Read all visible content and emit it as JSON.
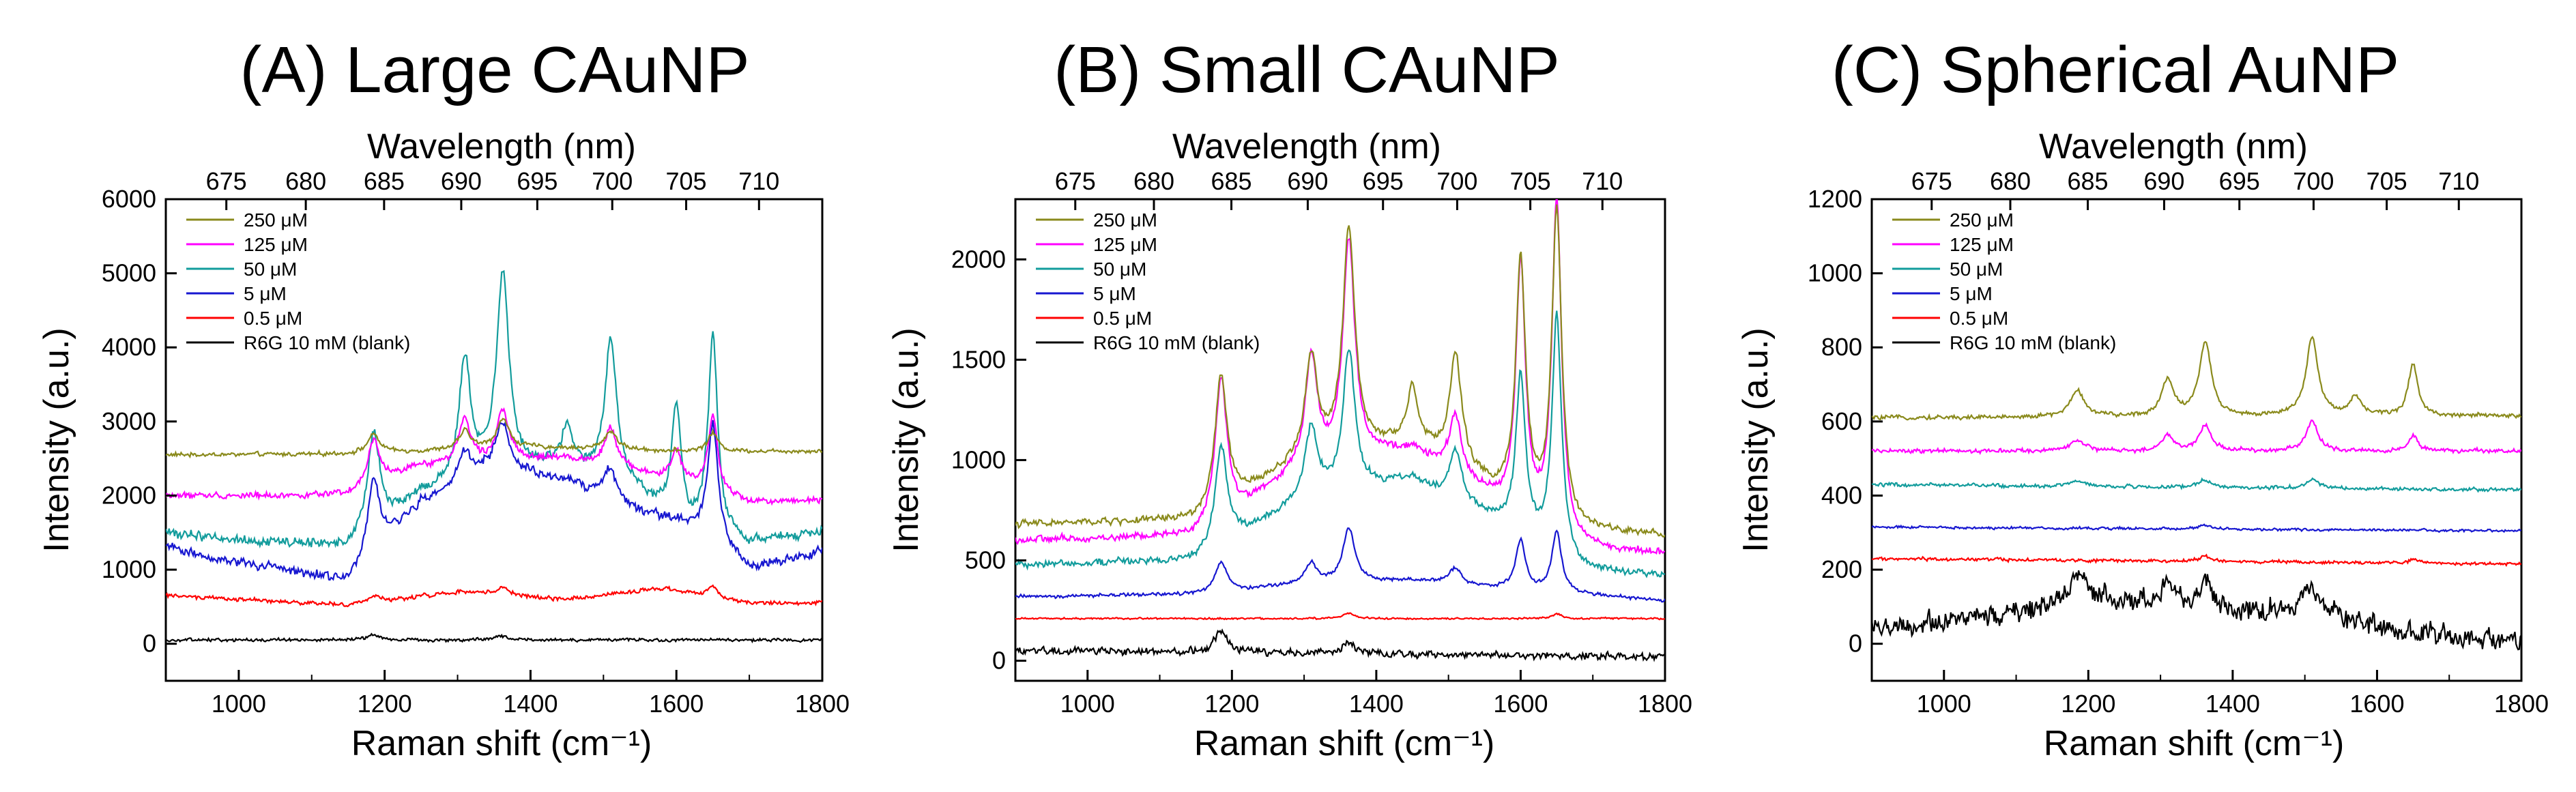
{
  "chart_data": [
    {
      "type": "line",
      "panel": "A",
      "title": "(A) Large CAuNP",
      "xlabel": "Raman shift (cm⁻¹)",
      "ylabel": "Intensity (a.u.)",
      "top_xlabel": "Wavelength (nm)",
      "xlim": [
        900,
        1800
      ],
      "ylim": [
        -500,
        6000
      ],
      "xticks": [
        1000,
        1200,
        1400,
        1600,
        1800
      ],
      "yticks": [
        0,
        1000,
        2000,
        3000,
        4000,
        5000,
        6000
      ],
      "top_ticks": [
        675,
        680,
        685,
        690,
        695,
        700,
        705,
        710
      ],
      "legend": [
        "250 μM",
        "125 μM",
        "50 μM",
        "5 μM",
        "0.5 μM",
        "R6G 10 mM (blank)"
      ],
      "series": [
        {
          "name": "250 μM",
          "color": "#8a8a1c",
          "baseline": [
            [
              900,
              2550
            ],
            [
              1150,
              2560
            ],
            [
              1400,
              2650
            ],
            [
              1600,
              2600
            ],
            [
              1800,
              2600
            ]
          ],
          "peaks": [
            [
              1185,
              250,
              10
            ],
            [
              1310,
              250,
              10
            ],
            [
              1362,
              400,
              10
            ],
            [
              1510,
              250,
              10
            ],
            [
              1650,
              250,
              8
            ]
          ],
          "noise": 40
        },
        {
          "name": "125 μM",
          "color": "#ff00ff",
          "baseline": [
            [
              900,
              2000
            ],
            [
              1150,
              2000
            ],
            [
              1250,
              2400
            ],
            [
              1450,
              2500
            ],
            [
              1600,
              2200
            ],
            [
              1700,
              1900
            ],
            [
              1800,
              1950
            ]
          ],
          "peaks": [
            [
              1185,
              600,
              10
            ],
            [
              1310,
              600,
              10
            ],
            [
              1362,
              700,
              10
            ],
            [
              1510,
              550,
              10
            ],
            [
              1600,
              400,
              8
            ],
            [
              1650,
              1000,
              8
            ]
          ],
          "noise": 60
        },
        {
          "name": "50 μM",
          "color": "#129c9c",
          "baseline": [
            [
              900,
              1500
            ],
            [
              1000,
              1400
            ],
            [
              1150,
              1300
            ],
            [
              1250,
              2000
            ],
            [
              1350,
              2300
            ],
            [
              1450,
              2400
            ],
            [
              1550,
              2000
            ],
            [
              1620,
              1500
            ],
            [
              1700,
              1350
            ],
            [
              1800,
              1500
            ]
          ],
          "peaks": [
            [
              1185,
              1300,
              10
            ],
            [
              1310,
              1600,
              10
            ],
            [
              1362,
              2700,
              10
            ],
            [
              1450,
              500,
              8
            ],
            [
              1510,
              1900,
              10
            ],
            [
              1600,
              1500,
              8
            ],
            [
              1650,
              2700,
              8
            ]
          ],
          "noise": 90
        },
        {
          "name": "5 μM",
          "color": "#1717d0",
          "baseline": [
            [
              900,
              1300
            ],
            [
              1000,
              1100
            ],
            [
              1150,
              850
            ],
            [
              1250,
              1900
            ],
            [
              1350,
              2400
            ],
            [
              1450,
              2200
            ],
            [
              1550,
              1800
            ],
            [
              1650,
              1500
            ],
            [
              1700,
              1000
            ],
            [
              1800,
              1250
            ]
          ],
          "peaks": [
            [
              1185,
              1000,
              10
            ],
            [
              1310,
              400,
              10
            ],
            [
              1362,
              600,
              10
            ],
            [
              1510,
              400,
              10
            ],
            [
              1650,
              1500,
              8
            ]
          ],
          "noise": 90
        },
        {
          "name": "0.5 μM",
          "color": "#ff0000",
          "baseline": [
            [
              900,
              650
            ],
            [
              1150,
              520
            ],
            [
              1300,
              700
            ],
            [
              1450,
              600
            ],
            [
              1580,
              750
            ],
            [
              1700,
              550
            ],
            [
              1800,
              550
            ]
          ],
          "peaks": [
            [
              1185,
              80,
              10
            ],
            [
              1362,
              100,
              10
            ],
            [
              1650,
              150,
              8
            ]
          ],
          "noise": 40
        },
        {
          "name": "R6G 10 mM (blank)",
          "color": "#000000",
          "baseline": [
            [
              900,
              50
            ],
            [
              1800,
              50
            ]
          ],
          "peaks": [
            [
              1185,
              80,
              10
            ],
            [
              1362,
              60,
              10
            ]
          ],
          "noise": 30
        }
      ]
    },
    {
      "type": "line",
      "panel": "B",
      "title": "(B) Small CAuNP",
      "xlabel": "Raman shift (cm⁻¹)",
      "ylabel": "Intensity (a.u.)",
      "top_xlabel": "Wavelength (nm)",
      "xlim": [
        900,
        1800
      ],
      "ylim": [
        -100,
        2300
      ],
      "xticks": [
        1000,
        1200,
        1400,
        1600,
        1800
      ],
      "yticks": [
        0,
        500,
        1000,
        1500,
        2000
      ],
      "top_ticks": [
        675,
        680,
        685,
        690,
        695,
        700,
        705,
        710
      ],
      "legend": [
        "250 μM",
        "125 μM",
        "50 μM",
        "5 μM",
        "0.5 μM",
        "R6G 10 mM (blank)"
      ],
      "series": [
        {
          "name": "250 μM",
          "color": "#8a8a1c",
          "baseline": [
            [
              900,
              680
            ],
            [
              1150,
              700
            ],
            [
              1300,
              1000
            ],
            [
              1450,
              1100
            ],
            [
              1560,
              850
            ],
            [
              1680,
              650
            ],
            [
              1800,
              620
            ]
          ],
          "peaks": [
            [
              1185,
              650,
              10
            ],
            [
              1310,
              500,
              10
            ],
            [
              1362,
              1100,
              10
            ],
            [
              1450,
              250,
              8
            ],
            [
              1510,
              550,
              10
            ],
            [
              1600,
              1200,
              8
            ],
            [
              1650,
              1550,
              8
            ]
          ],
          "noise": 25
        },
        {
          "name": "125 μM",
          "color": "#ff00ff",
          "baseline": [
            [
              900,
              600
            ],
            [
              1150,
              620
            ],
            [
              1300,
              950
            ],
            [
              1450,
              1050
            ],
            [
              1560,
              800
            ],
            [
              1680,
              560
            ],
            [
              1800,
              530
            ]
          ],
          "peaks": [
            [
              1185,
              700,
              10
            ],
            [
              1310,
              550,
              10
            ],
            [
              1362,
              1100,
              10
            ],
            [
              1510,
              300,
              10
            ],
            [
              1600,
              1250,
              8
            ],
            [
              1650,
              1650,
              8
            ]
          ],
          "noise": 25
        },
        {
          "name": "50 μM",
          "color": "#129c9c",
          "baseline": [
            [
              900,
              480
            ],
            [
              1150,
              500
            ],
            [
              1300,
              800
            ],
            [
              1450,
              900
            ],
            [
              1560,
              700
            ],
            [
              1680,
              450
            ],
            [
              1800,
              420
            ]
          ],
          "peaks": [
            [
              1185,
              500,
              10
            ],
            [
              1310,
              350,
              10
            ],
            [
              1362,
              700,
              10
            ],
            [
              1510,
              250,
              10
            ],
            [
              1600,
              800,
              8
            ],
            [
              1650,
              1200,
              8
            ]
          ],
          "noise": 25
        },
        {
          "name": "5 μM",
          "color": "#1717d0",
          "baseline": [
            [
              900,
              320
            ],
            [
              1150,
              330
            ],
            [
              1300,
              380
            ],
            [
              1450,
              400
            ],
            [
              1600,
              350
            ],
            [
              1800,
              300
            ]
          ],
          "peaks": [
            [
              1185,
              150,
              10
            ],
            [
              1310,
              100,
              10
            ],
            [
              1362,
              270,
              10
            ],
            [
              1510,
              80,
              10
            ],
            [
              1600,
              250,
              8
            ],
            [
              1650,
              300,
              8
            ]
          ],
          "noise": 12
        },
        {
          "name": "0.5 μM",
          "color": "#ff0000",
          "baseline": [
            [
              900,
              210
            ],
            [
              1800,
              210
            ]
          ],
          "peaks": [
            [
              1362,
              25,
              10
            ],
            [
              1650,
              25,
              8
            ]
          ],
          "noise": 6
        },
        {
          "name": "R6G 10 mM (blank)",
          "color": "#000000",
          "baseline": [
            [
              900,
              50
            ],
            [
              1800,
              20
            ]
          ],
          "peaks": [
            [
              1185,
              100,
              12
            ],
            [
              1362,
              60,
              10
            ]
          ],
          "noise": 25
        }
      ]
    },
    {
      "type": "line",
      "panel": "C",
      "title": "(C) Spherical AuNP",
      "xlabel": "Raman shift (cm⁻¹)",
      "ylabel": "Intensity (a.u.)",
      "top_xlabel": "Wavelength (nm)",
      "xlim": [
        900,
        1800
      ],
      "ylim": [
        -100,
        1200
      ],
      "xticks": [
        1000,
        1200,
        1400,
        1600,
        1800
      ],
      "yticks": [
        0,
        200,
        400,
        600,
        800,
        1000,
        1200
      ],
      "top_ticks": [
        675,
        680,
        685,
        690,
        695,
        700,
        705,
        710
      ],
      "legend": [
        "250 μM",
        "125 μM",
        "50 μM",
        "5 μM",
        "0.5 μM",
        "R6G 10 mM (blank)"
      ],
      "series": [
        {
          "name": "250 μM",
          "color": "#8a8a1c",
          "baseline": [
            [
              900,
              610
            ],
            [
              1800,
              615
            ]
          ],
          "peaks": [
            [
              1185,
              70,
              12
            ],
            [
              1310,
              100,
              10
            ],
            [
              1362,
              200,
              10
            ],
            [
              1510,
              210,
              10
            ],
            [
              1570,
              50,
              10
            ],
            [
              1650,
              140,
              8
            ]
          ],
          "noise": 8
        },
        {
          "name": "125 μM",
          "color": "#ff00ff",
          "baseline": [
            [
              900,
              520
            ],
            [
              1800,
              520
            ]
          ],
          "peaks": [
            [
              1185,
              30,
              12
            ],
            [
              1310,
              40,
              10
            ],
            [
              1362,
              70,
              10
            ],
            [
              1510,
              80,
              10
            ],
            [
              1650,
              40,
              8
            ]
          ],
          "noise": 8
        },
        {
          "name": "50 μM",
          "color": "#129c9c",
          "baseline": [
            [
              900,
              430
            ],
            [
              1800,
              415
            ]
          ],
          "peaks": [
            [
              1185,
              15,
              12
            ],
            [
              1362,
              20,
              10
            ],
            [
              1510,
              25,
              10
            ]
          ],
          "noise": 7
        },
        {
          "name": "5 μM",
          "color": "#1717d0",
          "baseline": [
            [
              900,
              315
            ],
            [
              1800,
              305
            ]
          ],
          "peaks": [
            [
              1362,
              10,
              10
            ]
          ],
          "noise": 5
        },
        {
          "name": "0.5 μM",
          "color": "#ff0000",
          "baseline": [
            [
              900,
              230
            ],
            [
              1800,
              215
            ]
          ],
          "peaks": [
            [
              1362,
              15,
              10
            ],
            [
              1650,
              10,
              8
            ]
          ],
          "noise": 6
        },
        {
          "name": "R6G 10 mM (blank)",
          "color": "#000000",
          "baseline": [
            [
              900,
              40
            ],
            [
              1100,
              80
            ],
            [
              1200,
              120
            ],
            [
              1300,
              110
            ],
            [
              1400,
              80
            ],
            [
              1500,
              100
            ],
            [
              1600,
              40
            ],
            [
              1800,
              10
            ]
          ],
          "peaks": [
            [
              1185,
              80,
              14
            ],
            [
              1310,
              60,
              12
            ],
            [
              1362,
              80,
              10
            ],
            [
              1510,
              70,
              12
            ]
          ],
          "noise": 40
        }
      ]
    }
  ]
}
